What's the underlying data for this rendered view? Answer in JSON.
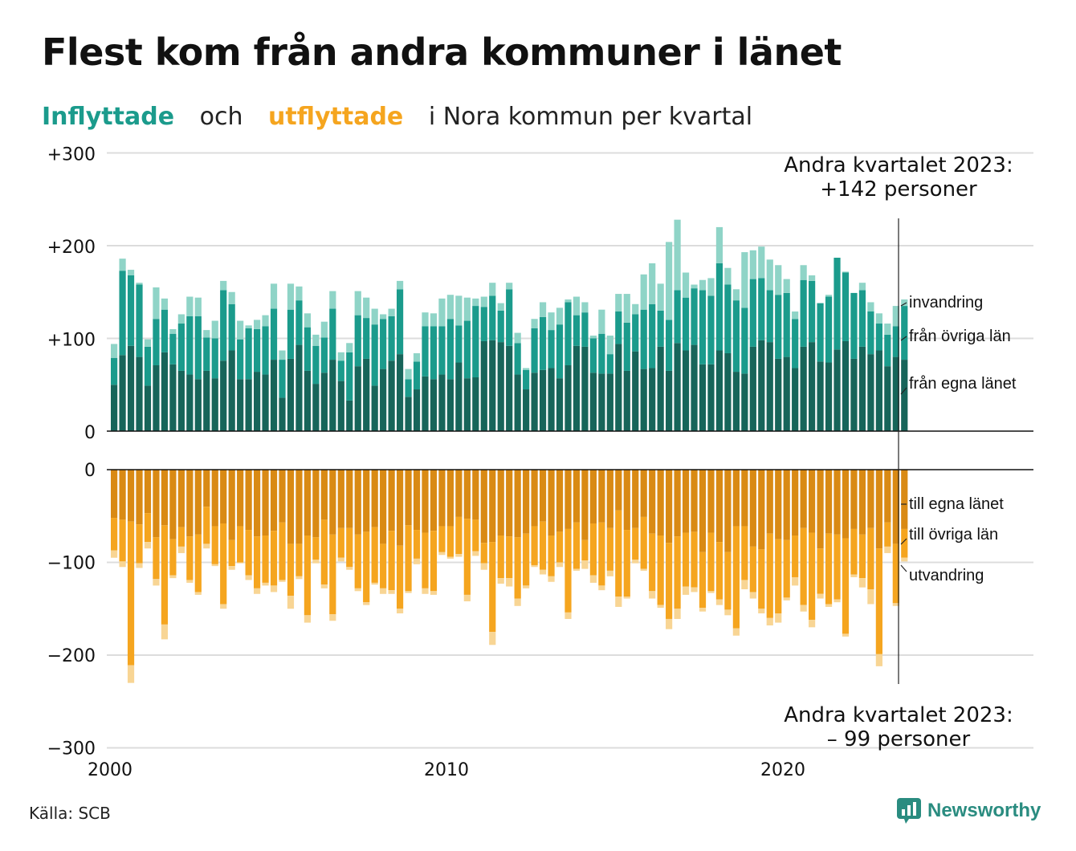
{
  "title": "Flest kom från andra kommuner i länet",
  "subtitle": {
    "in_word": "Inflyttade",
    "and_word": "och",
    "out_word": "utflyttade",
    "rest": "i Nora kommun per kvartal"
  },
  "source": "Källa: SCB",
  "logo_text": "Newsworthy",
  "colors": {
    "in_own": "#17655a",
    "in_other": "#1b9b8c",
    "in_imm": "#8fd4c7",
    "out_own": "#d98a14",
    "out_other": "#f5a51f",
    "out_emi": "#f8d594",
    "grid": "#dcdcdc",
    "axis": "#111111",
    "logo": "#2a8c80"
  },
  "chart_data": [
    {
      "type": "bar",
      "stacked": true,
      "panel": "inflyttade",
      "x_start_quarter": "2000Q1",
      "x_ticks": [
        "2000",
        "2010",
        "2020"
      ],
      "y_ticks": [
        "+300",
        "+200",
        "+100",
        "0"
      ],
      "ylim": [
        0,
        300
      ],
      "grid": true,
      "series": [
        {
          "name": "från egna länet",
          "values": [
            50,
            82,
            92,
            80,
            49,
            71,
            85,
            72,
            65,
            61,
            56,
            65,
            57,
            76,
            87,
            56,
            56,
            64,
            61,
            77,
            36,
            78,
            93,
            65,
            51,
            63,
            77,
            54,
            33,
            70,
            78,
            49,
            67,
            76,
            83,
            37,
            45,
            59,
            56,
            61,
            56,
            74,
            57,
            58,
            97,
            98,
            96,
            92,
            61,
            45,
            63,
            66,
            68,
            57,
            71,
            92,
            91,
            63,
            62,
            62,
            94,
            65,
            86,
            67,
            68,
            91,
            65,
            95,
            87,
            93,
            72,
            72,
            87,
            84,
            64,
            62,
            91,
            98,
            96,
            78,
            80,
            68,
            91,
            96,
            75,
            74,
            88,
            97,
            78,
            91,
            83,
            87,
            70,
            80,
            77
          ]
        },
        {
          "name": "från övriga län",
          "values": [
            29,
            91,
            76,
            78,
            42,
            50,
            46,
            33,
            51,
            63,
            68,
            36,
            43,
            76,
            50,
            43,
            55,
            46,
            52,
            55,
            41,
            53,
            48,
            47,
            41,
            38,
            55,
            22,
            52,
            55,
            44,
            66,
            54,
            48,
            70,
            19,
            30,
            54,
            57,
            52,
            65,
            40,
            62,
            77,
            37,
            48,
            34,
            61,
            34,
            21,
            48,
            57,
            41,
            58,
            68,
            33,
            37,
            37,
            43,
            21,
            35,
            52,
            40,
            64,
            69,
            39,
            55,
            57,
            57,
            61,
            80,
            74,
            94,
            74,
            77,
            71,
            73,
            67,
            56,
            69,
            69,
            53,
            72,
            66,
            63,
            71,
            99,
            74,
            71,
            61,
            46,
            29,
            34,
            33,
            58
          ]
        },
        {
          "name": "invandring",
          "values": [
            15,
            13,
            6,
            2,
            8,
            34,
            12,
            5,
            10,
            21,
            20,
            8,
            19,
            10,
            13,
            20,
            3,
            10,
            12,
            27,
            10,
            28,
            15,
            15,
            12,
            17,
            19,
            9,
            10,
            26,
            22,
            17,
            5,
            8,
            9,
            11,
            9,
            15,
            14,
            30,
            26,
            32,
            25,
            8,
            11,
            14,
            8,
            7,
            11,
            2,
            10,
            16,
            19,
            18,
            3,
            20,
            11,
            3,
            26,
            20,
            19,
            31,
            11,
            38,
            44,
            29,
            84,
            76,
            27,
            4,
            11,
            19,
            39,
            18,
            12,
            60,
            31,
            34,
            33,
            32,
            15,
            8,
            16,
            6,
            0,
            2,
            0,
            1,
            0,
            8,
            10,
            11,
            12,
            22,
            7
          ]
        }
      ]
    },
    {
      "type": "bar",
      "stacked": true,
      "panel": "utflyttade",
      "x_start_quarter": "2000Q1",
      "x_ticks": [
        "2000",
        "2010",
        "2020"
      ],
      "y_ticks": [
        "0",
        "−100",
        "−200",
        "−300"
      ],
      "ylim": [
        -300,
        0
      ],
      "grid": true,
      "series": [
        {
          "name": "till egna länet",
          "values": [
            -52,
            -54,
            -56,
            -59,
            -47,
            -73,
            -60,
            -75,
            -62,
            -72,
            -70,
            -40,
            -61,
            -58,
            -76,
            -61,
            -65,
            -72,
            -71,
            -66,
            -57,
            -80,
            -80,
            -71,
            -73,
            -54,
            -70,
            -63,
            -63,
            -70,
            -67,
            -62,
            -80,
            -66,
            -82,
            -60,
            -65,
            -68,
            -66,
            -61,
            -61,
            -51,
            -53,
            -54,
            -79,
            -78,
            -71,
            -72,
            -73,
            -69,
            -61,
            -56,
            -71,
            -67,
            -64,
            -57,
            -76,
            -58,
            -57,
            -63,
            -44,
            -65,
            -63,
            -51,
            -69,
            -71,
            -79,
            -72,
            -68,
            -67,
            -89,
            -68,
            -78,
            -89,
            -61,
            -61,
            -83,
            -86,
            -69,
            -75,
            -76,
            -71,
            -63,
            -68,
            -85,
            -69,
            -70,
            -74,
            -64,
            -70,
            -63,
            -85,
            -57,
            -80,
            -64
          ]
        },
        {
          "name": "till övriga län",
          "values": [
            -35,
            -45,
            -155,
            -42,
            -31,
            -45,
            -107,
            -39,
            -21,
            -47,
            -62,
            -40,
            -41,
            -87,
            -28,
            -39,
            -49,
            -56,
            -51,
            -59,
            -62,
            -56,
            -35,
            -86,
            -24,
            -70,
            -86,
            -32,
            -42,
            -58,
            -76,
            -60,
            -48,
            -64,
            -68,
            -71,
            -31,
            -60,
            -65,
            -28,
            -33,
            -40,
            -82,
            -34,
            -22,
            -97,
            -46,
            -45,
            -66,
            -56,
            -42,
            -52,
            -44,
            -33,
            -90,
            -50,
            -22,
            -56,
            -68,
            -46,
            -93,
            -72,
            -34,
            -56,
            -62,
            -75,
            -82,
            -78,
            -58,
            -60,
            -60,
            -63,
            -62,
            -62,
            -110,
            -58,
            -49,
            -64,
            -91,
            -80,
            -62,
            -45,
            -83,
            -94,
            -49,
            -76,
            -70,
            -103,
            -49,
            -47,
            -66,
            -114,
            -26,
            -64,
            -31
          ]
        },
        {
          "name": "utvandring",
          "values": [
            -8,
            -6,
            -19,
            -5,
            -7,
            -7,
            -16,
            -3,
            -7,
            -3,
            -3,
            -5,
            -2,
            -5,
            -4,
            -1,
            -5,
            -6,
            -3,
            -7,
            -2,
            -14,
            -3,
            -8,
            -4,
            -4,
            -7,
            -4,
            -3,
            -3,
            -3,
            -2,
            -6,
            -4,
            -5,
            -2,
            -6,
            -6,
            -4,
            -3,
            -2,
            -3,
            -7,
            -5,
            -7,
            -14,
            -6,
            -9,
            -8,
            -3,
            -2,
            -5,
            -6,
            -5,
            -7,
            -2,
            -9,
            -8,
            -5,
            -6,
            -11,
            -2,
            -4,
            -2,
            -8,
            -3,
            -11,
            -11,
            -9,
            -5,
            -4,
            -2,
            -6,
            -6,
            -8,
            -10,
            -7,
            -5,
            -8,
            -10,
            -3,
            -9,
            -7,
            -8,
            -5,
            -3,
            -3,
            -3,
            -3,
            -10,
            -16,
            -13,
            -7,
            -3,
            -4
          ]
        }
      ]
    }
  ],
  "annotations": {
    "top": {
      "line1": "Andra kvartalet 2023:",
      "line2": "+142 personer"
    },
    "bottom": {
      "line1": "Andra kvartalet 2023:",
      "line2": "– 99 personer"
    },
    "in_labels": [
      "invandring",
      "från övriga län",
      "från egna länet"
    ],
    "out_labels": [
      "till egna länet",
      "till övriga län",
      "utvandring"
    ]
  }
}
